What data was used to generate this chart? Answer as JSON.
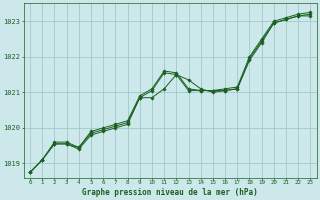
{
  "title": "Graphe pression niveau de la mer (hPa)",
  "x_ticks": [
    0,
    1,
    2,
    3,
    4,
    5,
    6,
    7,
    8,
    9,
    10,
    11,
    12,
    13,
    14,
    15,
    16,
    17,
    18,
    19,
    20,
    21,
    22,
    23
  ],
  "y_ticks": [
    1019,
    1020,
    1021,
    1022,
    1023
  ],
  "xlim": [
    -0.5,
    23.5
  ],
  "ylim": [
    1018.6,
    1023.5
  ],
  "bg_color": "#cce8ea",
  "grid_color": "#a0c8cc",
  "line_color": "#1a6020",
  "marker_color": "#1a6020",
  "text_color": "#1a6020",
  "line1_y": [
    1018.75,
    1019.1,
    1019.55,
    1019.55,
    1019.45,
    1019.85,
    1019.95,
    1020.05,
    1020.15,
    1020.85,
    1021.05,
    1021.55,
    1021.5,
    1021.05,
    1021.05,
    1021.05,
    1021.05,
    1021.1,
    1021.95,
    1022.45,
    1022.95,
    1023.05,
    1023.15,
    1023.2
  ],
  "line2_y": [
    1018.75,
    1019.1,
    1019.6,
    1019.6,
    1019.45,
    1019.9,
    1020.0,
    1020.1,
    1020.2,
    1020.9,
    1021.1,
    1021.6,
    1021.55,
    1021.1,
    1021.05,
    1021.05,
    1021.1,
    1021.15,
    1022.0,
    1022.5,
    1023.0,
    1023.1,
    1023.2,
    1023.25
  ],
  "line3_y": [
    1018.75,
    1019.1,
    1019.55,
    1019.55,
    1019.4,
    1019.8,
    1019.9,
    1020.0,
    1020.1,
    1020.85,
    1020.85,
    1021.1,
    1021.5,
    1021.35,
    1021.1,
    1021.0,
    1021.05,
    1021.1,
    1021.9,
    1022.4,
    1022.95,
    1023.05,
    1023.15,
    1023.15
  ]
}
